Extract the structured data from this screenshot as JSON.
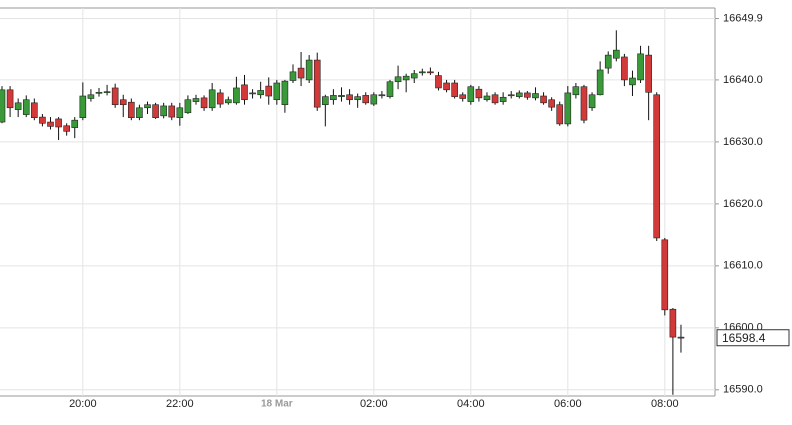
{
  "chart_data": {
    "type": "candlestick",
    "categories": [
      null,
      null,
      null,
      null,
      null,
      null,
      null,
      null,
      null,
      null,
      "20:00",
      null,
      null,
      null,
      null,
      null,
      null,
      null,
      null,
      null,
      null,
      null,
      "22:00",
      null,
      null,
      null,
      null,
      null,
      null,
      null,
      null,
      null,
      null,
      null,
      "18 Mar",
      null,
      null,
      null,
      null,
      null,
      null,
      null,
      null,
      null,
      null,
      null,
      "02:00",
      null,
      null,
      null,
      null,
      null,
      null,
      null,
      null,
      null,
      null,
      null,
      "04:00",
      null,
      null,
      null,
      null,
      null,
      null,
      null,
      null,
      null,
      null,
      null,
      "06:00",
      null,
      null,
      null,
      null,
      null,
      null,
      null,
      null,
      null,
      null,
      null,
      "08:00",
      null,
      null
    ],
    "open": [
      16633.2,
      16638.4,
      16635.2,
      16634.4,
      16636.3,
      16634.0,
      16633.2,
      16633.7,
      16632.6,
      16632.3,
      16633.9,
      16637.0,
      16637.9,
      16638.0,
      16638.7,
      16636.8,
      16636.4,
      16633.9,
      16635.5,
      16636.0,
      16634.2,
      16635.8,
      16633.9,
      16634.7,
      16636.5,
      16637.1,
      16635.5,
      16637.9,
      16636.3,
      16636.3,
      16639.2,
      16637.8,
      16637.6,
      16639.0,
      16636.8,
      16636.0,
      16639.9,
      16641.9,
      16640.0,
      16643.2,
      16636.0,
      16636.8,
      16637.3,
      16637.6,
      16636.8,
      16637.5,
      16636.1,
      16637.5,
      16637.3,
      16639.7,
      16640.0,
      16640.3,
      16641.2,
      16641.3,
      16640.7,
      16639.5,
      16639.5,
      16637.6,
      16636.5,
      16638.5,
      16636.8,
      16637.6,
      16636.5,
      16637.5,
      16637.3,
      16637.9,
      16637.1,
      16637.4,
      16636.8,
      16636.0,
      16632.9,
      16637.6,
      16638.9,
      16635.5,
      16637.6,
      16641.9,
      16643.5,
      16643.7,
      16639.2,
      16640.0,
      16644.0,
      16637.6,
      16614.2,
      16603.0,
      16598.5
    ],
    "high": [
      16639.0,
      16639.0,
      16637.0,
      16637.5,
      16637.0,
      16634.5,
      16634.0,
      16634.0,
      16633.0,
      16634.0,
      16639.6,
      16638.5,
      16638.7,
      16639.2,
      16639.4,
      16637.6,
      16637.0,
      16636.0,
      16636.5,
      16636.3,
      16636.3,
      16636.3,
      16636.3,
      16637.5,
      16637.6,
      16637.5,
      16639.5,
      16638.5,
      16637.3,
      16640.5,
      16640.8,
      16638.5,
      16639.7,
      16640.4,
      16640.0,
      16640.0,
      16642.5,
      16644.5,
      16644.0,
      16644.4,
      16637.6,
      16638.5,
      16638.8,
      16638.5,
      16637.8,
      16638.0,
      16638.0,
      16638.2,
      16640.0,
      16642.3,
      16641.0,
      16641.6,
      16641.8,
      16642.0,
      16641.3,
      16640.0,
      16640.0,
      16638.0,
      16639.2,
      16639.0,
      16638.0,
      16638.0,
      16638.0,
      16638.2,
      16638.3,
      16638.2,
      16638.8,
      16638.0,
      16637.2,
      16636.5,
      16639.0,
      16639.5,
      16639.2,
      16638.0,
      16643.0,
      16644.6,
      16648.0,
      16644.2,
      16641.5,
      16645.5,
      16645.5,
      16638.0,
      16614.5,
      16603.2,
      16600.5
    ],
    "low": [
      16633.0,
      16634.0,
      16634.0,
      16634.0,
      16633.5,
      16632.5,
      16632.0,
      16630.3,
      16631.0,
      16630.6,
      16633.5,
      16636.5,
      16637.3,
      16637.5,
      16635.5,
      16634.0,
      16633.5,
      16633.5,
      16634.5,
      16633.7,
      16633.8,
      16633.5,
      16632.6,
      16634.5,
      16636.0,
      16635.0,
      16635.0,
      16635.5,
      16636.0,
      16636.0,
      16636.0,
      16637.0,
      16637.0,
      16636.0,
      16636.0,
      16634.7,
      16639.5,
      16639.0,
      16639.5,
      16635.0,
      16632.5,
      16636.0,
      16636.5,
      16636.0,
      16635.5,
      16636.0,
      16635.8,
      16637.0,
      16637.0,
      16638.5,
      16638.0,
      16639.5,
      16640.7,
      16640.8,
      16638.3,
      16638.0,
      16637.0,
      16636.5,
      16636.0,
      16636.5,
      16636.5,
      16636.0,
      16636.0,
      16637.0,
      16637.0,
      16636.8,
      16636.7,
      16636.0,
      16635.0,
      16632.6,
      16632.5,
      16637.0,
      16633.0,
      16635.0,
      16637.5,
      16641.0,
      16643.0,
      16639.0,
      16637.4,
      16639.5,
      16633.5,
      16614.0,
      16602.0,
      16589.2,
      16596.0
    ],
    "close": [
      16638.4,
      16635.5,
      16636.3,
      16636.8,
      16633.9,
      16633.0,
      16632.5,
      16632.4,
      16631.7,
      16633.5,
      16637.4,
      16637.6,
      16638.0,
      16638.1,
      16636.0,
      16636.0,
      16633.9,
      16635.5,
      16636.0,
      16633.9,
      16635.8,
      16634.0,
      16635.5,
      16636.8,
      16637.0,
      16635.5,
      16638.4,
      16636.1,
      16636.8,
      16638.7,
      16636.8,
      16637.9,
      16638.3,
      16637.4,
      16639.5,
      16639.8,
      16641.3,
      16640.3,
      16643.2,
      16635.6,
      16637.3,
      16637.5,
      16637.5,
      16636.8,
      16637.3,
      16636.3,
      16637.6,
      16637.6,
      16639.7,
      16640.5,
      16640.6,
      16641.0,
      16641.3,
      16641.2,
      16638.7,
      16638.4,
      16637.3,
      16637.0,
      16638.9,
      16637.1,
      16637.4,
      16636.3,
      16637.2,
      16637.6,
      16637.9,
      16637.2,
      16637.8,
      16636.3,
      16635.6,
      16632.9,
      16637.9,
      16638.9,
      16633.5,
      16637.6,
      16641.6,
      16644.0,
      16644.8,
      16640.0,
      16640.3,
      16644.2,
      16638.0,
      16614.5,
      16602.9,
      16598.5,
      16598.4
    ],
    "up_color": "#3a9a3a",
    "down_color": "#d23a3a",
    "ylim": [
      16589.0,
      16651.6
    ],
    "yticks": [
      {
        "value": 16590,
        "label": "16590.0"
      },
      {
        "value": 16600,
        "label": "16600.0"
      },
      {
        "value": 16610,
        "label": "16610.0"
      },
      {
        "value": 16620,
        "label": "16620.0"
      },
      {
        "value": 16630,
        "label": "16630.0"
      },
      {
        "value": 16640,
        "label": "16640.0"
      },
      16649.9
    ],
    "grid": true
  }
}
